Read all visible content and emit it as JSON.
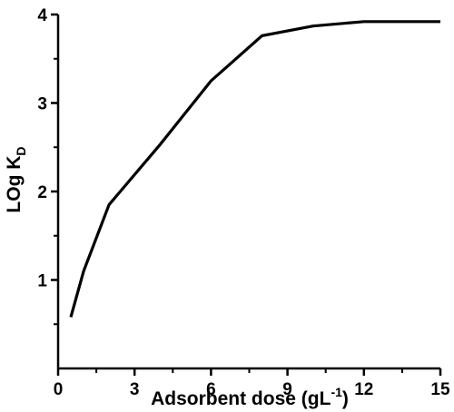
{
  "chart_data": {
    "type": "line",
    "title": "",
    "xlabel": {
      "main": "Adsorbent dose (gL",
      "sup": "-1",
      "close": ")"
    },
    "ylabel": {
      "main": "LOg K",
      "sub": "D"
    },
    "xlim": [
      0,
      15
    ],
    "ylim": [
      0,
      4
    ],
    "xticks": [
      0,
      3,
      6,
      9,
      12,
      15
    ],
    "yticks": [
      1,
      2,
      3,
      4
    ],
    "xticks_minor": [
      1.5,
      4.5,
      7.5,
      10.5,
      13.5
    ],
    "yticks_minor": [
      0.5,
      1.5,
      2.5,
      3.5
    ],
    "grid": false,
    "series": [
      {
        "color": "#000000",
        "x": [
          0.5,
          1,
          2,
          4,
          6,
          8,
          10,
          12,
          15
        ],
        "y": [
          0.58,
          1.1,
          1.85,
          2.53,
          3.25,
          3.76,
          3.87,
          3.92,
          3.92
        ]
      }
    ]
  }
}
